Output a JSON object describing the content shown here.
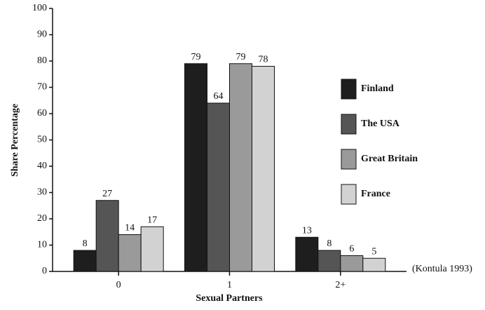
{
  "chart_data": {
    "type": "bar",
    "x_label": "Sexual Partners",
    "y_label": "Share Percentage",
    "annotation": "(Kontula 1993)",
    "categories": [
      "0",
      "1",
      "2+"
    ],
    "series": [
      {
        "name": "Finland",
        "color": "#1e1e1e",
        "values": [
          8,
          79,
          13
        ]
      },
      {
        "name": "The USA",
        "color": "#555555",
        "values": [
          27,
          64,
          8
        ]
      },
      {
        "name": "Great Britain",
        "color": "#9a9a9a",
        "values": [
          14,
          79,
          6
        ]
      },
      {
        "name": "France",
        "color": "#d2d2d2",
        "values": [
          17,
          78,
          5
        ]
      }
    ],
    "ylim": [
      0,
      100
    ],
    "yticks": [
      0,
      10,
      20,
      30,
      40,
      50,
      60,
      70,
      80,
      90,
      100
    ],
    "grid": false,
    "legend": "right"
  }
}
